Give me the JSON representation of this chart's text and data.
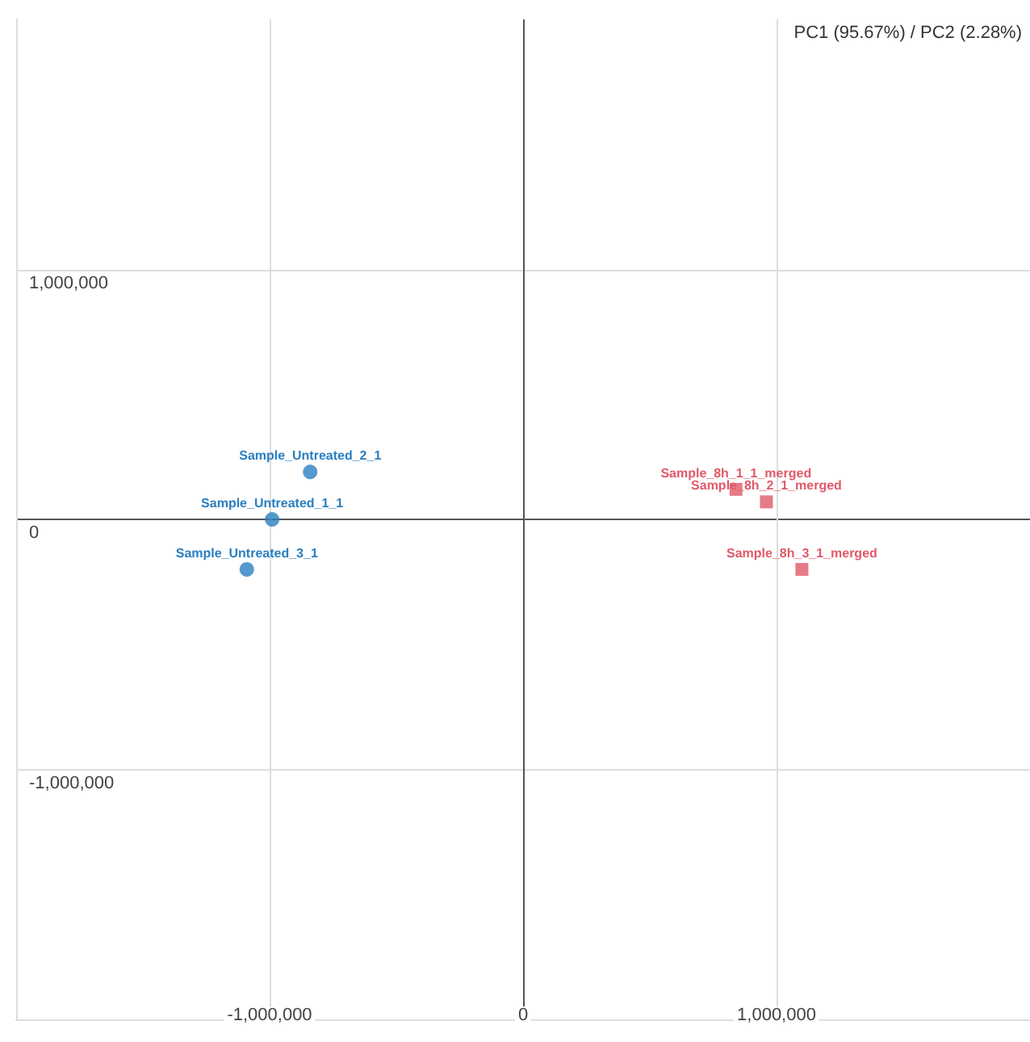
{
  "chart_data": {
    "type": "scatter",
    "title": "PC1 (95.67%) / PC2 (2.28%)",
    "xlim": [
      -2000000,
      2000000
    ],
    "ylim": [
      -2000000,
      2000000
    ],
    "xticks": [
      {
        "value": -1000000,
        "label": "-1,000,000"
      },
      0,
      {
        "value": 1000000,
        "label": "1,000,000"
      }
    ],
    "yticks": [
      {
        "value": -1000000,
        "label": "-1,000,000"
      },
      0,
      {
        "value": 1000000,
        "label": "1,000,000"
      }
    ],
    "grid": true,
    "series": [
      {
        "color": "#2a7fc1",
        "marker": "circle",
        "x": [
          -840000,
          -990000,
          -1090000
        ],
        "values": [
          190000,
          0,
          -200000
        ]
      },
      {
        "color": "#e05a6a",
        "marker": "square",
        "x": [
          840000,
          960000,
          1100000
        ],
        "values": [
          120000,
          70000,
          -200000
        ]
      }
    ],
    "annotations": [
      {
        "text": "Sample_Untreated_2_1",
        "x": -840000,
        "y": 190000
      },
      {
        "text": "Sample_Untreated_1_1",
        "x": -990000,
        "y": 0
      },
      {
        "text": "Sample_Untreated_3_1",
        "x": -1090000,
        "y": -200000
      },
      {
        "text": "Sample_8h_1_1_merged",
        "x": 840000,
        "y": 120000
      },
      {
        "text": "Sample_8h_2_1_merged",
        "x": 960000,
        "y": 70000
      },
      {
        "text": "Sample_8h_3_1_merged",
        "x": 1100000,
        "y": -200000
      }
    ]
  }
}
